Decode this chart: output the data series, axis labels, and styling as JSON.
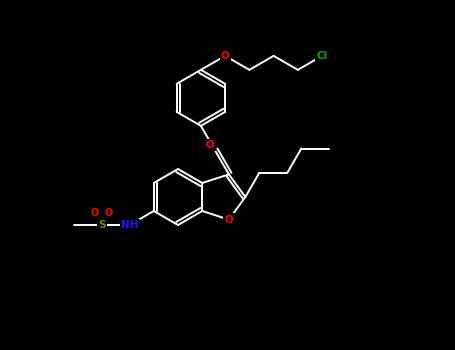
{
  "bg_color": "#000000",
  "bond_color": "#ffffff",
  "atom_colors": {
    "O": "#ff0000",
    "N": "#1a1aff",
    "S": "#808000",
    "Cl": "#00aa00",
    "C": "#ffffff"
  },
  "figsize": [
    4.55,
    3.5
  ],
  "dpi": 100,
  "BL": 30
}
